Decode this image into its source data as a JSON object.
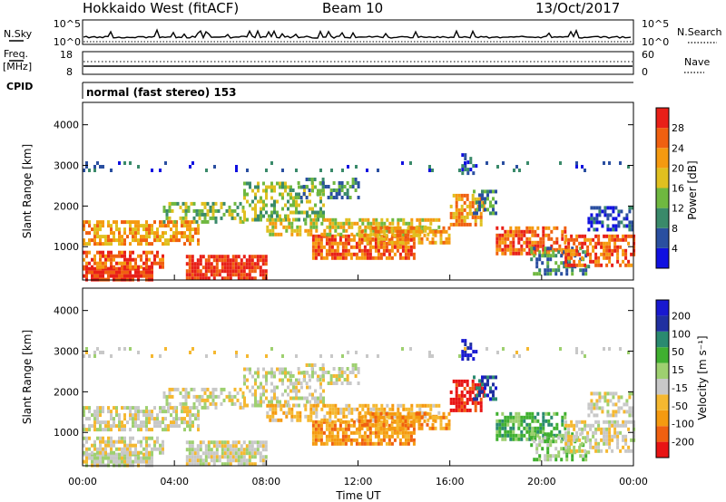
{
  "header": {
    "site_title": "Hokkaido West (fitACF)",
    "beam_label": "Beam 10",
    "date_label": "13/Oct/2017"
  },
  "top_panels": {
    "nsky_label": "N.Sky",
    "nsearch_label": "N.Search",
    "noise_tick_hi": "10^5",
    "noise_tick_lo": "10^0",
    "freq_label": "Freq.",
    "freq_unit": "[MHz]",
    "freq_tick_hi": "18",
    "freq_tick_lo": "8",
    "nave_label": "Nave",
    "nave_tick_hi": "60",
    "nave_tick_lo": "0",
    "cpid_label": "CPID",
    "cpid_value": "normal (fast stereo) 153"
  },
  "colors": {
    "power": [
      "#1010e0",
      "#2a4fa0",
      "#3a8a6a",
      "#6fb840",
      "#e0c020",
      "#f59a10",
      "#f06010",
      "#e82018"
    ],
    "velocity": [
      "#e81414",
      "#f06010",
      "#f59a10",
      "#f5b830",
      "#c8c8c8",
      "#9ed070",
      "#40b030",
      "#2a8a70",
      "#2030a0",
      "#1818d0"
    ]
  },
  "chart_data": [
    {
      "type": "heatmap",
      "name": "power",
      "x_range_hours": [
        0,
        24
      ],
      "y_range_km": [
        180,
        4550
      ],
      "xticks": [
        "00:00",
        "04:00",
        "08:00",
        "12:00",
        "16:00",
        "20:00",
        "00:00"
      ],
      "yticks": [
        "1000",
        "2000",
        "3000",
        "4000"
      ],
      "ylabel": "Slant Range [km]",
      "colorbar_label": "Power [dB]",
      "colorbar_ticks": [
        "4",
        "8",
        "12",
        "16",
        "20",
        "24",
        "28"
      ],
      "colorbar_range": [
        0,
        32
      ]
    },
    {
      "type": "heatmap",
      "name": "velocity",
      "x_range_hours": [
        0,
        24
      ],
      "y_range_km": [
        180,
        4550
      ],
      "xticks": [
        "00:00",
        "04:00",
        "08:00",
        "12:00",
        "16:00",
        "20:00",
        "00:00"
      ],
      "yticks": [
        "1000",
        "2000",
        "3000",
        "4000"
      ],
      "ylabel": "Slant Range [km]",
      "xlabel": "Time UT",
      "colorbar_label": "Velocity [m s⁻¹]",
      "colorbar_ticks": [
        "-200",
        "-100",
        "-50",
        "-15",
        "15",
        "50",
        "100",
        "200"
      ]
    }
  ]
}
